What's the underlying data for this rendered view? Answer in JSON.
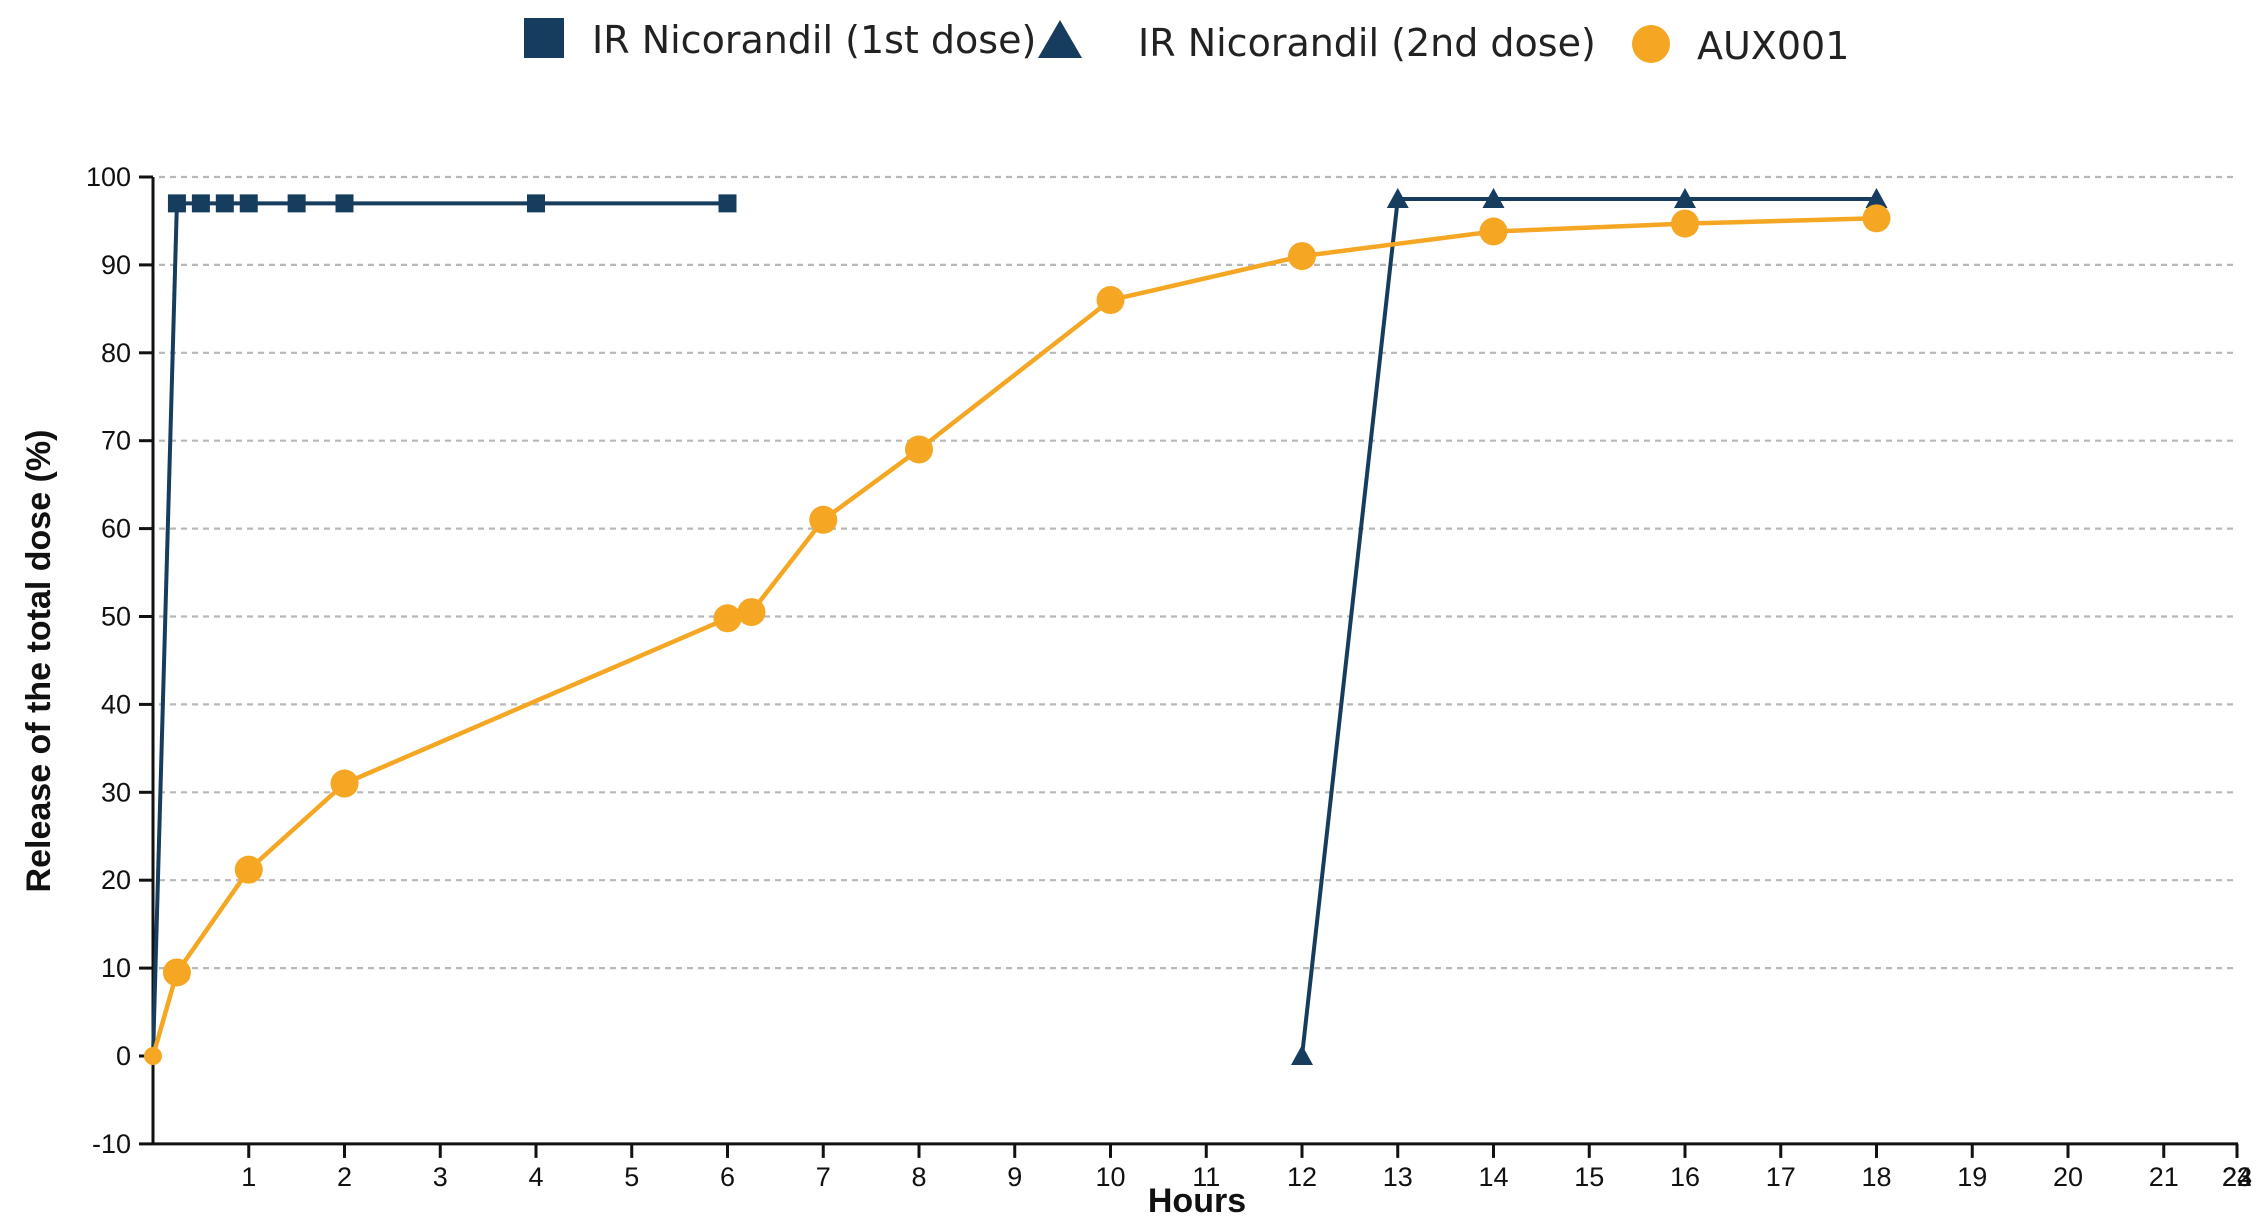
{
  "chart_data": {
    "type": "line",
    "title": "",
    "xlabel": "Hours",
    "ylabel": "Release of the total dose (%)",
    "xlim": [
      -0.25,
      24
    ],
    "ylim": [
      -10,
      100
    ],
    "x_ticks": [
      1,
      2,
      3,
      4,
      5,
      6,
      7,
      8,
      9,
      10,
      11,
      12,
      13,
      14,
      15,
      16,
      17,
      18,
      19,
      20,
      21,
      22,
      23,
      24
    ],
    "y_ticks": [
      -10,
      0,
      10,
      20,
      30,
      40,
      50,
      60,
      70,
      80,
      90,
      100
    ],
    "grid": "horizontal dashed",
    "legend_position": "top",
    "series": [
      {
        "name": "IR Nicorandil (1st dose)",
        "marker": "square",
        "color": "#163d5e",
        "points": [
          {
            "x": 0,
            "y": 0
          },
          {
            "x": 0.25,
            "y": 97
          },
          {
            "x": 0.5,
            "y": 97
          },
          {
            "x": 0.75,
            "y": 97
          },
          {
            "x": 1,
            "y": 97
          },
          {
            "x": 1.5,
            "y": 97
          },
          {
            "x": 2,
            "y": 97
          },
          {
            "x": 4,
            "y": 97
          },
          {
            "x": 6,
            "y": 97
          }
        ]
      },
      {
        "name": "IR Nicorandil (2nd dose)",
        "marker": "triangle",
        "color": "#163d5e",
        "points": [
          {
            "x": 12,
            "y": 0
          },
          {
            "x": 13,
            "y": 97.5
          },
          {
            "x": 14,
            "y": 97.5
          },
          {
            "x": 16,
            "y": 97.5
          },
          {
            "x": 18,
            "y": 97.5
          }
        ]
      },
      {
        "name": "AUX001",
        "marker": "circle",
        "color": "#f5a623",
        "points": [
          {
            "x": 0,
            "y": 0
          },
          {
            "x": 0.25,
            "y": 9.5
          },
          {
            "x": 1,
            "y": 21.2
          },
          {
            "x": 2,
            "y": 31
          },
          {
            "x": 6,
            "y": 49.8
          },
          {
            "x": 6.25,
            "y": 50.5
          },
          {
            "x": 7,
            "y": 61
          },
          {
            "x": 8,
            "y": 69
          },
          {
            "x": 10,
            "y": 86
          },
          {
            "x": 12,
            "y": 91
          },
          {
            "x": 14,
            "y": 93.8
          },
          {
            "x": 16,
            "y": 94.7
          },
          {
            "x": 18,
            "y": 95.3
          }
        ]
      }
    ]
  }
}
